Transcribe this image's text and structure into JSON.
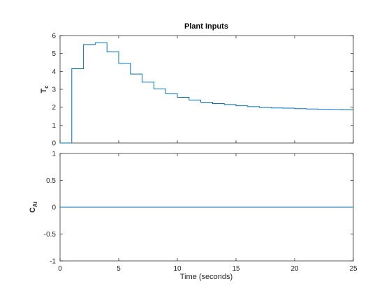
{
  "figure": {
    "title": "Plant Inputs",
    "xlabel": "Time (seconds)"
  },
  "chart_data": [
    {
      "type": "line",
      "step": true,
      "title": "Plant Inputs",
      "ylabel_main": "T",
      "ylabel_sub": "c",
      "xlim": [
        0,
        25
      ],
      "ylim": [
        0,
        6
      ],
      "xticks": [
        0,
        5,
        10,
        15,
        20,
        25
      ],
      "yticks": [
        0,
        1,
        2,
        3,
        4,
        5,
        6
      ],
      "grid": false,
      "series": [
        {
          "color": "#0072bd",
          "x": [
            0,
            1,
            2,
            3,
            4,
            5,
            6,
            7,
            8,
            9,
            10,
            11,
            12,
            13,
            14,
            15,
            16,
            17,
            18,
            19,
            20,
            21,
            22,
            23,
            24,
            25
          ],
          "y": [
            0,
            4.15,
            5.5,
            5.6,
            5.1,
            4.45,
            3.85,
            3.4,
            3.02,
            2.75,
            2.55,
            2.4,
            2.28,
            2.2,
            2.15,
            2.08,
            2.03,
            1.98,
            1.96,
            1.95,
            1.92,
            1.9,
            1.88,
            1.87,
            1.85,
            1.85
          ]
        }
      ]
    },
    {
      "type": "line",
      "step": true,
      "ylabel_main": "C",
      "ylabel_sub": "Ai",
      "xlabel": "Time (seconds)",
      "xlim": [
        0,
        25
      ],
      "ylim": [
        -1,
        1
      ],
      "xticks": [
        0,
        5,
        10,
        15,
        20,
        25
      ],
      "yticks": [
        -1,
        -0.5,
        0,
        0.5,
        1
      ],
      "grid": false,
      "series": [
        {
          "color": "#0072bd",
          "x": [
            0,
            25
          ],
          "y": [
            0,
            0
          ]
        }
      ]
    }
  ]
}
